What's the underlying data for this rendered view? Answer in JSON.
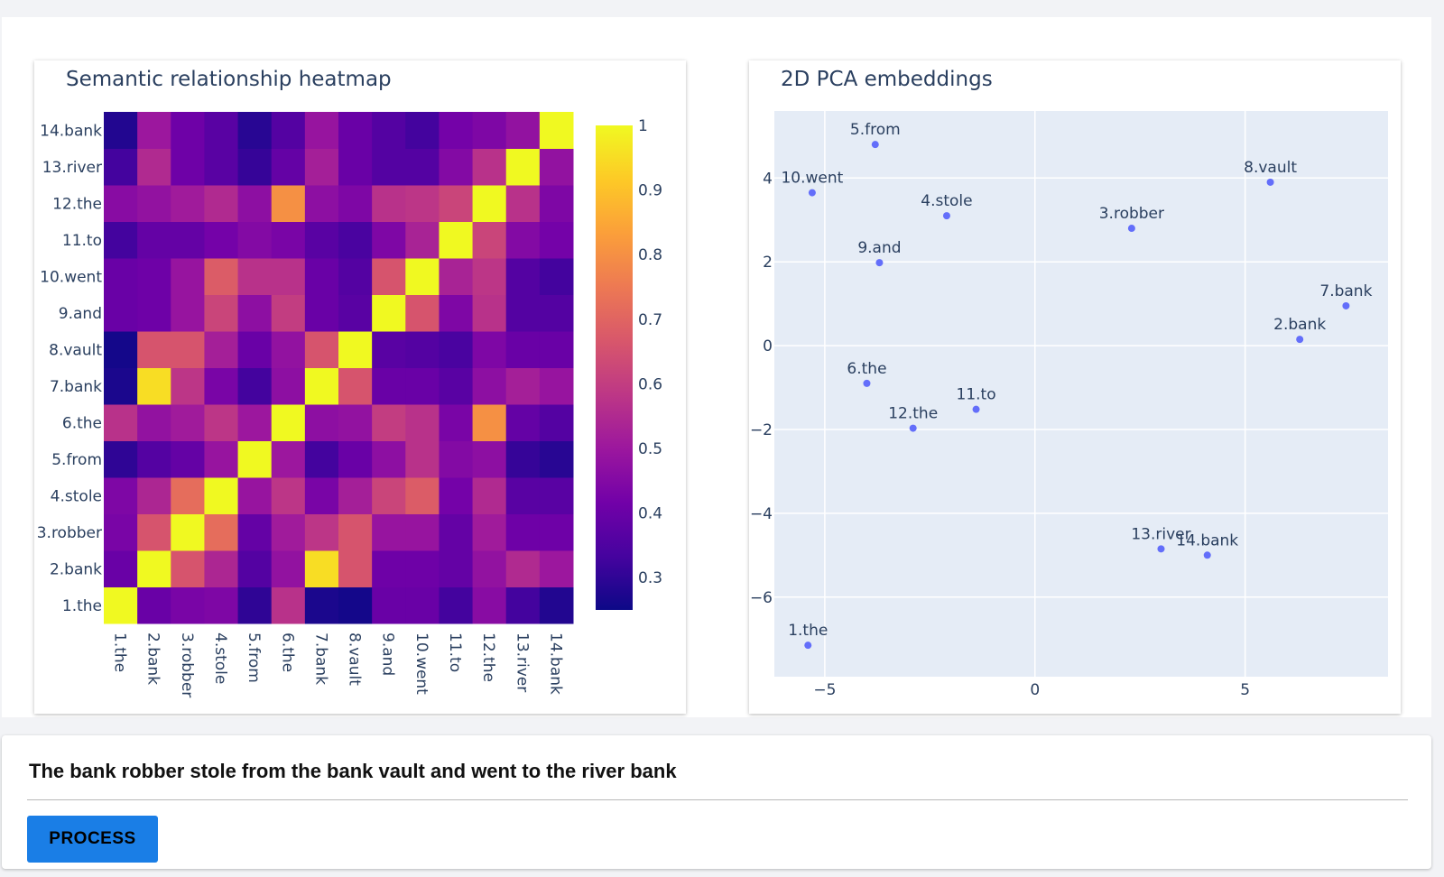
{
  "heatmap": {
    "title": "Semantic relationship heatmap",
    "chart_data": {
      "type": "heatmap",
      "title": "Semantic relationship heatmap",
      "labels": [
        "1.the",
        "2.bank",
        "3.robber",
        "4.stole",
        "5.from",
        "6.the",
        "7.bank",
        "8.vault",
        "9.and",
        "10.went",
        "11.to",
        "12.the",
        "13.river",
        "14.bank"
      ],
      "colorscale": [
        "#0d0887",
        "#46039f",
        "#7201a8",
        "#9c179e",
        "#bd3786",
        "#d8576b",
        "#ed7953",
        "#fb9f3a",
        "#fdca26",
        "#f0f921"
      ],
      "zmin": 0.25,
      "zmax": 1,
      "colorbar_ticks": [
        "1",
        "0.9",
        "0.8",
        "0.7",
        "0.6",
        "0.5",
        "0.4",
        "0.3"
      ],
      "colorbar_tick_values": [
        1,
        0.9,
        0.8,
        0.7,
        0.6,
        0.5,
        0.4,
        0.3
      ],
      "z": [
        [
          1.0,
          0.4,
          0.43,
          0.44,
          0.3,
          0.57,
          0.27,
          0.26,
          0.4,
          0.4,
          0.33,
          0.46,
          0.33,
          0.28
        ],
        [
          0.4,
          1.0,
          0.66,
          0.54,
          0.36,
          0.48,
          0.95,
          0.66,
          0.41,
          0.41,
          0.39,
          0.48,
          0.55,
          0.5
        ],
        [
          0.43,
          0.66,
          1.0,
          0.72,
          0.39,
          0.51,
          0.58,
          0.66,
          0.49,
          0.49,
          0.39,
          0.51,
          0.41,
          0.41
        ],
        [
          0.44,
          0.54,
          0.72,
          1.0,
          0.49,
          0.58,
          0.43,
          0.52,
          0.62,
          0.68,
          0.42,
          0.55,
          0.37,
          0.37
        ],
        [
          0.3,
          0.36,
          0.39,
          0.49,
          1.0,
          0.5,
          0.33,
          0.4,
          0.47,
          0.57,
          0.45,
          0.47,
          0.31,
          0.29
        ],
        [
          0.57,
          0.48,
          0.51,
          0.58,
          0.5,
          1.0,
          0.47,
          0.48,
          0.6,
          0.57,
          0.43,
          0.8,
          0.39,
          0.36
        ],
        [
          0.27,
          0.95,
          0.58,
          0.43,
          0.33,
          0.47,
          1.0,
          0.66,
          0.4,
          0.4,
          0.37,
          0.47,
          0.52,
          0.49
        ],
        [
          0.26,
          0.66,
          0.66,
          0.52,
          0.4,
          0.48,
          0.66,
          1.0,
          0.37,
          0.36,
          0.34,
          0.44,
          0.4,
          0.4
        ],
        [
          0.4,
          0.41,
          0.49,
          0.62,
          0.47,
          0.6,
          0.4,
          0.37,
          1.0,
          0.66,
          0.44,
          0.57,
          0.36,
          0.36
        ],
        [
          0.4,
          0.41,
          0.49,
          0.68,
          0.57,
          0.57,
          0.4,
          0.36,
          0.66,
          1.0,
          0.53,
          0.58,
          0.36,
          0.33
        ],
        [
          0.33,
          0.39,
          0.39,
          0.42,
          0.45,
          0.43,
          0.37,
          0.34,
          0.44,
          0.53,
          1.0,
          0.62,
          0.45,
          0.42
        ],
        [
          0.46,
          0.48,
          0.51,
          0.55,
          0.47,
          0.8,
          0.47,
          0.44,
          0.57,
          0.58,
          0.62,
          1.0,
          0.57,
          0.44
        ],
        [
          0.33,
          0.55,
          0.41,
          0.37,
          0.31,
          0.39,
          0.52,
          0.4,
          0.36,
          0.36,
          0.45,
          0.57,
          1.0,
          0.48
        ],
        [
          0.28,
          0.5,
          0.41,
          0.37,
          0.29,
          0.36,
          0.49,
          0.4,
          0.36,
          0.33,
          0.42,
          0.44,
          0.48,
          1.0
        ]
      ]
    }
  },
  "pca": {
    "title": "2D PCA embeddings",
    "chart_data": {
      "type": "scatter",
      "title": "2D PCA embeddings",
      "xlim": [
        -6.2,
        8.4
      ],
      "ylim": [
        -7.9,
        5.6
      ],
      "xticks": [
        -5,
        0,
        5
      ],
      "yticks": [
        4,
        2,
        0,
        -2,
        -4,
        -6
      ],
      "xtick_labels": [
        "−5",
        "0",
        "5"
      ],
      "ytick_labels": [
        "4",
        "2",
        "0",
        "−2",
        "−4",
        "−6"
      ],
      "marker_color": "#636efa",
      "plot_bg": "#e5ecf6",
      "grid": true,
      "points": [
        {
          "label": "1.the",
          "x": -5.4,
          "y": -7.15
        },
        {
          "label": "2.bank",
          "x": 6.3,
          "y": 0.15
        },
        {
          "label": "3.robber",
          "x": 2.3,
          "y": 2.8
        },
        {
          "label": "4.stole",
          "x": -2.1,
          "y": 3.1
        },
        {
          "label": "5.from",
          "x": -3.8,
          "y": 4.8
        },
        {
          "label": "6.the",
          "x": -4.0,
          "y": -0.9
        },
        {
          "label": "7.bank",
          "x": 7.4,
          "y": 0.95
        },
        {
          "label": "8.vault",
          "x": 5.6,
          "y": 3.9
        },
        {
          "label": "9.and",
          "x": -3.7,
          "y": 1.98
        },
        {
          "label": "10.went",
          "x": -5.3,
          "y": 3.65
        },
        {
          "label": "11.to",
          "x": -1.4,
          "y": -1.52
        },
        {
          "label": "12.the",
          "x": -2.9,
          "y": -1.97
        },
        {
          "label": "13.river",
          "x": 3.0,
          "y": -4.85
        },
        {
          "label": "14.bank",
          "x": 4.1,
          "y": -5.0
        }
      ]
    }
  },
  "input": {
    "sentence": "The bank robber stole from the bank vault and went to the river bank",
    "button_label": "PROCESS"
  }
}
